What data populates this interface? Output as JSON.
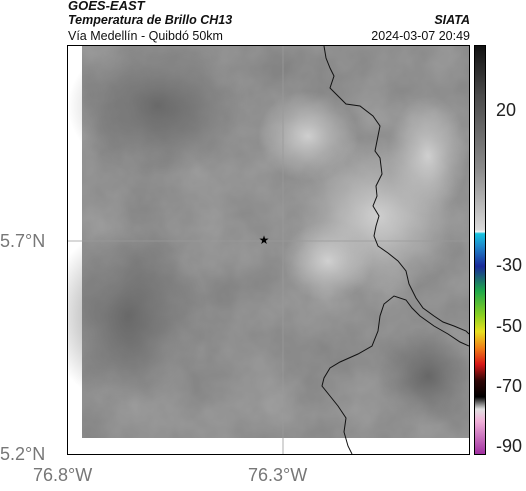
{
  "header": {
    "satellite": "GOES-EAST",
    "product": "Temperatura de Brillo CH13",
    "region": "Vía Medellín - Quibdó 50km",
    "organization": "SIATA",
    "datetime": "2024-03-07 20:49"
  },
  "map": {
    "lat_ticks": [
      "5.7°N",
      "5.2°N"
    ],
    "lon_ticks": [
      "76.8°W",
      "76.3°W"
    ],
    "marker_icon": "star-icon"
  },
  "colorbar": {
    "labels": [
      "20",
      "-30",
      "-50",
      "-70",
      "-90"
    ],
    "colors": {
      "dark": "#111111",
      "gray_mid": "#8a8a8a",
      "white": "#f5f5f5",
      "cyan": "#18c4e0",
      "blue": "#1a2a9a",
      "green": "#2cb82c",
      "yellow": "#e8e020",
      "red": "#d81818",
      "black": "#000000",
      "pink": "#f0b0d8",
      "purple": "#a030a0"
    }
  }
}
